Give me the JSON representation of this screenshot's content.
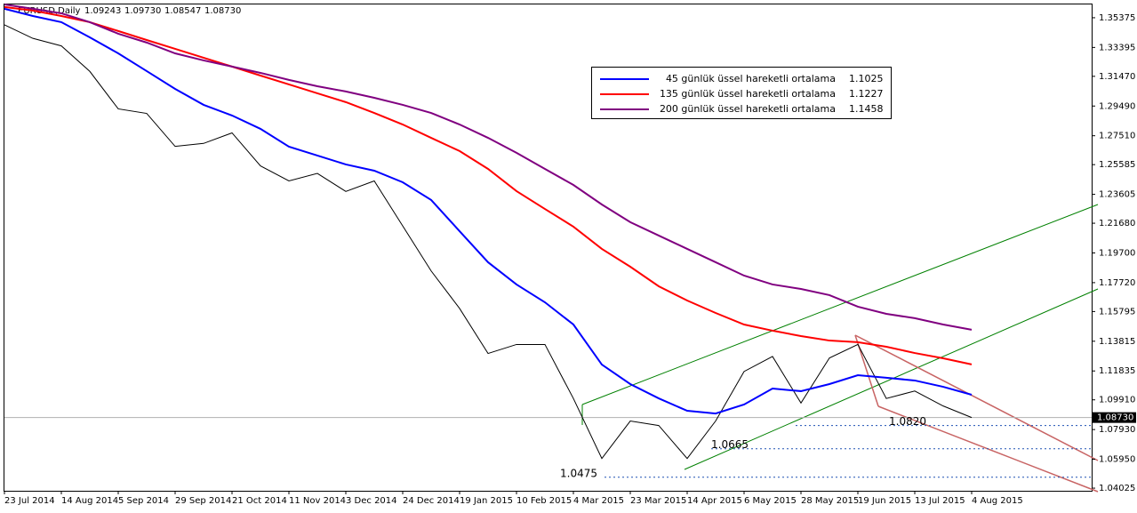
{
  "chart_data": {
    "type": "line",
    "title": "EURUSD,Daily",
    "ohlc": [
      {
        "value": 1.09243,
        "label": "1.09243"
      },
      {
        "value": 1.0973,
        "label": "1.09730"
      },
      {
        "value": 1.08547,
        "label": "1.08547"
      },
      {
        "value": 1.0873,
        "label": "1.08730"
      }
    ],
    "categories": [
      "23 Jul 2014",
      null,
      "14 Aug 2014",
      null,
      "5 Sep 2014",
      null,
      "29 Sep 2014",
      null,
      "21 Oct 2014",
      null,
      "11 Nov 2014",
      null,
      "3 Dec 2014",
      null,
      "24 Dec 2014",
      null,
      "19 Jan 2015",
      null,
      "10 Feb 2015",
      null,
      "4 Mar 2015",
      null,
      "23 Mar 2015",
      null,
      "14 Apr 2015",
      null,
      "6 May 2015",
      null,
      "28 May 2015",
      null,
      "19 Jun 2015",
      null,
      "13 Jul 2015",
      null,
      "4 Aug 2015"
    ],
    "series": [
      {
        "color": "#000000",
        "values": [
          1.349,
          1.34,
          1.335,
          1.318,
          1.293,
          1.29,
          1.268,
          1.27,
          1.277,
          1.255,
          1.245,
          1.25,
          1.238,
          1.245,
          1.215,
          1.185,
          1.16,
          1.13,
          1.136,
          1.136,
          1.1,
          1.06,
          1.085,
          1.082,
          1.06,
          1.085,
          1.118,
          1.128,
          1.097,
          1.127,
          1.136,
          1.1,
          1.105,
          1.095,
          1.0873
        ]
      },
      {
        "name": "45 günlük üssel hareketli ortalama",
        "color": "#0000ff",
        "values": [
          1.3597,
          1.3549,
          1.3508,
          1.3407,
          1.33,
          1.3182,
          1.3063,
          1.2957,
          1.2886,
          1.2797,
          1.2678,
          1.2619,
          1.256,
          1.2518,
          1.2441,
          1.2323,
          1.2115,
          1.1908,
          1.176,
          1.1641,
          1.1493,
          1.1226,
          1.1096,
          1.1001,
          1.0918,
          1.09,
          1.096,
          1.1066,
          1.1049,
          1.1096,
          1.1155,
          1.1138,
          1.112,
          1.1078,
          1.1025
        ]
      },
      {
        "name": "135 günlük üssel hareketli ortalama",
        "color": "#ff0000",
        "values": [
          1.3609,
          1.3585,
          1.3549,
          1.3508,
          1.3449,
          1.3389,
          1.333,
          1.3271,
          1.3212,
          1.3152,
          1.3093,
          1.3034,
          1.2975,
          1.2903,
          1.2826,
          1.2737,
          1.2649,
          1.253,
          1.2382,
          1.2263,
          1.2145,
          1.1997,
          1.1878,
          1.1748,
          1.1653,
          1.157,
          1.1493,
          1.1452,
          1.1416,
          1.1386,
          1.1375,
          1.1345,
          1.1303,
          1.1268,
          1.1227
        ]
      },
      {
        "name": "200 günlük üssel hareketli ortalama",
        "color": "#800080",
        "values": [
          1.3626,
          1.3597,
          1.3567,
          1.3508,
          1.3431,
          1.3372,
          1.33,
          1.3253,
          1.3212,
          1.317,
          1.3123,
          1.3081,
          1.3046,
          1.3004,
          1.2957,
          1.2903,
          1.2826,
          1.2737,
          1.2637,
          1.253,
          1.2423,
          1.2293,
          1.2175,
          1.2086,
          1.1997,
          1.1908,
          1.1819,
          1.176,
          1.173,
          1.1689,
          1.1612,
          1.1564,
          1.1535,
          1.1493,
          1.1458
        ]
      }
    ],
    "ylim": [
      1.0385,
      1.3626
    ],
    "yticks": [
      1.35375,
      1.33395,
      {
        "value": 1.3147,
        "label": "1.31470"
      },
      {
        "value": 1.2949,
        "label": "1.29490"
      },
      {
        "value": 1.2751,
        "label": "1.27510"
      },
      1.25585,
      1.23605,
      {
        "value": 1.2168,
        "label": "1.21680"
      },
      {
        "value": 1.197,
        "label": "1.19700"
      },
      {
        "value": 1.1772,
        "label": "1.17720"
      },
      1.15795,
      1.13815,
      1.11835,
      {
        "value": 1.0991,
        "label": "1.09910"
      },
      {
        "value": 1.0793,
        "label": "1.07930"
      },
      {
        "value": 1.0595,
        "label": "1.05950"
      },
      1.04025
    ],
    "current_price": {
      "value": 1.0873,
      "label": "1.08730"
    },
    "levels": [
      1.0475,
      1.0665,
      {
        "value": 1.082,
        "label": "1.0820"
      }
    ]
  }
}
